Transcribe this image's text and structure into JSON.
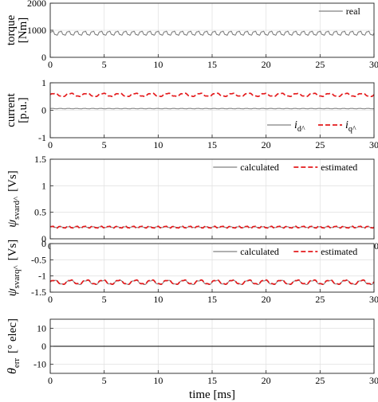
{
  "chart_data": [
    {
      "type": "line",
      "ylabel_lines": [
        "torque",
        "[Nm]"
      ],
      "xlim": [
        0,
        30
      ],
      "ylim": [
        0,
        2000
      ],
      "xticks": [
        0,
        5,
        10,
        15,
        20,
        25,
        30
      ],
      "yticks": [
        0,
        1000,
        2000
      ],
      "grid": true,
      "legend_position": "top-right",
      "series": [
        {
          "name": "real",
          "color": "#808080",
          "style": "solid",
          "mean": 890,
          "amplitude": 90,
          "period_ms": 0.75
        }
      ]
    },
    {
      "type": "line",
      "ylabel_lines": [
        "current",
        "[p.u.]"
      ],
      "xlim": [
        0,
        30
      ],
      "ylim": [
        -1,
        1
      ],
      "xticks": [
        0,
        5,
        10,
        15,
        20,
        25,
        30
      ],
      "yticks": [
        -1,
        0,
        1
      ],
      "grid": true,
      "legend_position": "bottom-right",
      "series": [
        {
          "name_main": "i",
          "name_sub": "d^",
          "color": "#808080",
          "style": "solid",
          "mean": 0.06,
          "amplitude": 0.01,
          "period_ms": 0.75
        },
        {
          "name_main": "i",
          "name_sub": "q^",
          "color": "#e41a1c",
          "style": "dashed",
          "mean": 0.56,
          "amplitude": 0.07,
          "period_ms": 1.5
        }
      ]
    },
    {
      "type": "line",
      "ylabel_main": "ψ",
      "ylabel_sub": "svard^",
      "ylabel_unit": "[Vs]",
      "xlim": [
        0,
        30
      ],
      "ylim": [
        0,
        1.5
      ],
      "xticks": [
        0,
        5,
        10,
        15,
        20,
        25,
        30
      ],
      "yticks": [
        0,
        0.5,
        1,
        1.5
      ],
      "grid": true,
      "legend_position": "top-right",
      "series": [
        {
          "name": "calculated",
          "color": "#808080",
          "style": "solid",
          "mean": 0.22,
          "amplitude": 0.01,
          "period_ms": 0.75
        },
        {
          "name": "estimated",
          "color": "#e41a1c",
          "style": "dashed",
          "mean": 0.22,
          "amplitude": 0.02,
          "period_ms": 0.75
        }
      ]
    },
    {
      "type": "line",
      "ylabel_main": "ψ",
      "ylabel_sub": "svarq^",
      "ylabel_unit": "[Vs]",
      "xlim": [
        0,
        30
      ],
      "ylim": [
        -1.5,
        0
      ],
      "xticks": [
        0,
        5,
        10,
        15,
        20,
        25,
        30
      ],
      "yticks": [
        -1.5,
        -1,
        -0.5,
        0
      ],
      "grid": true,
      "legend_position": "top-right",
      "series": [
        {
          "name": "calculated",
          "color": "#808080",
          "style": "solid",
          "mean": -1.2,
          "amplitude": 0.08,
          "period_ms": 1.5
        },
        {
          "name": "estimated",
          "color": "#e41a1c",
          "style": "dashed",
          "mean": -1.19,
          "amplitude": 0.08,
          "period_ms": 1.5
        }
      ]
    },
    {
      "type": "line",
      "ylabel_main": "θ",
      "ylabel_sub": "err",
      "ylabel_unit": "[° elec]",
      "xlim": [
        0,
        30
      ],
      "ylim": [
        -15,
        15
      ],
      "xticks": [
        0,
        5,
        10,
        15,
        20,
        25,
        30
      ],
      "yticks": [
        -10,
        0,
        10
      ],
      "grid": true,
      "series": [
        {
          "color": "#000000",
          "style": "solid",
          "mean": 0,
          "amplitude": 0,
          "period_ms": 1
        }
      ]
    }
  ],
  "shared_xlabel": "time  [ms]"
}
